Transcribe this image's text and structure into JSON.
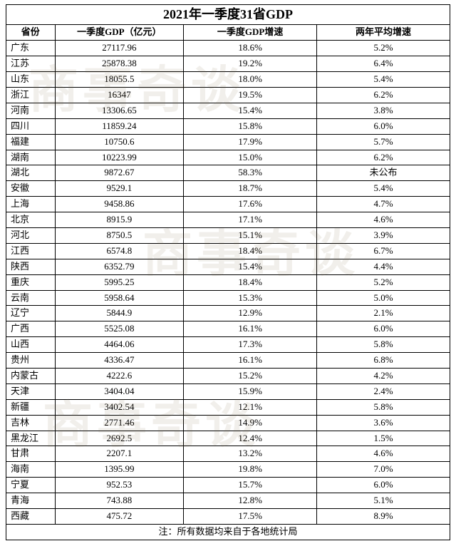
{
  "title": "2021年一季度31省GDP",
  "columns": [
    "省份",
    "一季度GDP（亿元）",
    "一季度GDP增速",
    "两年平均增速"
  ],
  "footnote": "注：所有数据均来自于各地统计局",
  "col_align": [
    "left",
    "center",
    "center",
    "center"
  ],
  "header_fontsize": 13,
  "title_fontsize": 18,
  "cell_fontsize": 13,
  "border_color": "#000000",
  "background_color": "#ffffff",
  "text_color": "#000000",
  "watermark_text": "商事奇谈",
  "watermark_color": "rgba(120,100,60,0.10)",
  "rows": [
    [
      "广东",
      "27117.96",
      "18.6%",
      "5.2%"
    ],
    [
      "江苏",
      "25878.38",
      "19.2%",
      "6.4%"
    ],
    [
      "山东",
      "18055.5",
      "18.0%",
      "5.4%"
    ],
    [
      "浙江",
      "16347",
      "19.5%",
      "6.2%"
    ],
    [
      "河南",
      "13306.65",
      "15.4%",
      "3.8%"
    ],
    [
      "四川",
      "11859.24",
      "15.8%",
      "6.0%"
    ],
    [
      "福建",
      "10750.6",
      "17.9%",
      "5.7%"
    ],
    [
      "湖南",
      "10223.99",
      "15.0%",
      "6.2%"
    ],
    [
      "湖北",
      "9872.67",
      "58.3%",
      "未公布"
    ],
    [
      "安徽",
      "9529.1",
      "18.7%",
      "5.4%"
    ],
    [
      "上海",
      "9458.86",
      "17.6%",
      "4.7%"
    ],
    [
      "北京",
      "8915.9",
      "17.1%",
      "4.6%"
    ],
    [
      "河北",
      "8750.5",
      "15.1%",
      "3.9%"
    ],
    [
      "江西",
      "6574.8",
      "18.4%",
      "6.7%"
    ],
    [
      "陕西",
      "6352.79",
      "15.4%",
      "4.4%"
    ],
    [
      "重庆",
      "5995.25",
      "18.4%",
      "5.2%"
    ],
    [
      "云南",
      "5958.64",
      "15.3%",
      "5.0%"
    ],
    [
      "辽宁",
      "5844.9",
      "12.9%",
      "2.1%"
    ],
    [
      "广西",
      "5525.08",
      "16.1%",
      "6.0%"
    ],
    [
      "山西",
      "4464.06",
      "17.3%",
      "5.8%"
    ],
    [
      "贵州",
      "4336.47",
      "16.1%",
      "6.8%"
    ],
    [
      "内蒙古",
      "4222.6",
      "15.2%",
      "4.2%"
    ],
    [
      "天津",
      "3404.04",
      "15.9%",
      "2.4%"
    ],
    [
      "新疆",
      "3402.54",
      "12.1%",
      "5.8%"
    ],
    [
      "吉林",
      "2771.46",
      "14.9%",
      "3.6%"
    ],
    [
      "黑龙江",
      "2692.5",
      "12.4%",
      "1.5%"
    ],
    [
      "甘肃",
      "2207.1",
      "13.2%",
      "4.6%"
    ],
    [
      "海南",
      "1395.99",
      "19.8%",
      "7.0%"
    ],
    [
      "宁夏",
      "952.53",
      "15.7%",
      "6.0%"
    ],
    [
      "青海",
      "743.88",
      "12.8%",
      "5.1%"
    ],
    [
      "西藏",
      "475.72",
      "17.5%",
      "8.9%"
    ]
  ]
}
